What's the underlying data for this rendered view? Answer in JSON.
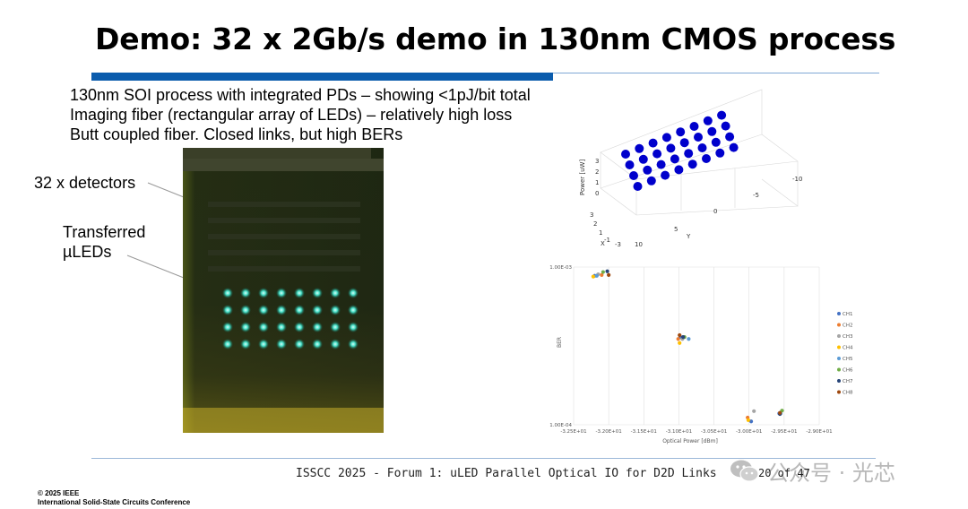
{
  "slide": {
    "title": "Demo:  32 x 2Gb/s demo in 130nm CMOS process",
    "bullets": [
      "130nm SOI process with integrated PDs – showing <1pJ/bit total",
      "Imaging fiber (rectangular array of LEDs) – relatively high loss",
      "Butt coupled fiber.  Closed links, but high BERs"
    ],
    "callouts": {
      "detectors": "32 x detectors",
      "uleds_line1": "Transferred",
      "uleds_line2": "µLEDs"
    },
    "accent_color": "#0b5cad"
  },
  "plot3d": {
    "z_label": "Power [uW]",
    "x_axis_label": "X",
    "y_axis_label": "Y",
    "z_ticks": [
      "3",
      "2",
      "1",
      "0"
    ],
    "x_ticks": [
      "3",
      "2",
      "1",
      "-1",
      "-3"
    ],
    "y_ticks": [
      "10",
      "5",
      "0",
      "-5",
      "-10"
    ],
    "dot_color": "#0000cc"
  },
  "chart_data": {
    "type": "scatter",
    "title": "",
    "xlabel": "Optical Power [dBm]",
    "ylabel": "BER",
    "xlim": [
      -32.5,
      -29.0
    ],
    "ylim": [
      0.0001,
      0.001
    ],
    "x_ticks": [
      "-3.25E+01",
      "-3.20E+01",
      "-3.15E+01",
      "-3.10E+01",
      "-3.05E+01",
      "-3.00E+01",
      "-2.95E+01",
      "-2.90E+01"
    ],
    "y_ticks": [
      "1.00E-03",
      "1.00E-04"
    ],
    "legend_position": "right",
    "series": [
      {
        "name": "CH1",
        "color": "#4472c4",
        "points": [
          [
            -32.2,
            0.00088
          ],
          [
            -30.98,
            0.00036
          ],
          [
            -29.97,
            0.000105
          ],
          [
            -29.57,
            0.000118
          ]
        ]
      },
      {
        "name": "CH2",
        "color": "#ed7d31",
        "points": [
          [
            -32.1,
            0.00089
          ],
          [
            -31.01,
            0.00035
          ],
          [
            -30.02,
            0.000111
          ]
        ]
      },
      {
        "name": "CH3",
        "color": "#a5a5a5",
        "points": [
          [
            -32.15,
            0.0009
          ],
          [
            -30.95,
            0.00035
          ],
          [
            -29.93,
            0.000122
          ]
        ]
      },
      {
        "name": "CH4",
        "color": "#ffc000",
        "points": [
          [
            -32.22,
            0.00087
          ],
          [
            -30.99,
            0.00033
          ],
          [
            -30.01,
            0.000107
          ]
        ]
      },
      {
        "name": "CH5",
        "color": "#5b9bd5",
        "points": [
          [
            -32.17,
            0.00088
          ],
          [
            -30.86,
            0.00035
          ],
          [
            -29.55,
            0.000118
          ]
        ]
      },
      {
        "name": "CH6",
        "color": "#70ad47",
        "points": [
          [
            -32.08,
            0.00093
          ],
          [
            -30.92,
            0.00036
          ],
          [
            -29.53,
            0.000123
          ]
        ]
      },
      {
        "name": "CH7",
        "color": "#264478",
        "points": [
          [
            -32.02,
            0.00094
          ],
          [
            -30.94,
            0.00036
          ],
          [
            -29.56,
            0.000117
          ]
        ]
      },
      {
        "name": "CH8",
        "color": "#9e480e",
        "points": [
          [
            -32.0,
            0.00089
          ],
          [
            -30.99,
            0.00037
          ],
          [
            -29.56,
            0.000119
          ]
        ]
      }
    ]
  },
  "footer": {
    "conference_text": "ISSCC 2025 - Forum 1: uLED Parallel Optical IO for D2D Links",
    "page": "20 of 47",
    "copyright_line1": "© 2025 IEEE",
    "copyright_line2": "International Solid-State Circuits Conference",
    "watermark_text": "公众号 · 光芯"
  }
}
